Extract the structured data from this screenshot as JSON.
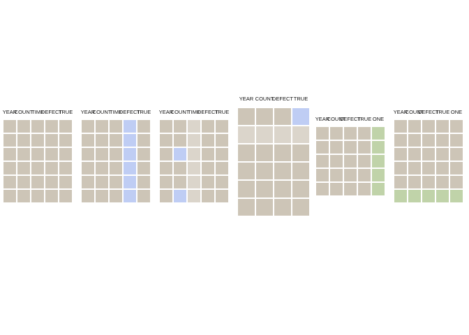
{
  "panels": [
    {
      "headers": [
        "YEAR",
        "COUNT",
        "TIME",
        "DEFECT",
        "TRUE"
      ],
      "rows": 6,
      "cells": [
        [
          "tan",
          "tan",
          "tan",
          "tan",
          "tan"
        ],
        [
          "tan",
          "tan",
          "tan",
          "tan",
          "tan"
        ],
        [
          "tan",
          "tan",
          "tan",
          "tan",
          "tan"
        ],
        [
          "tan",
          "tan",
          "tan",
          "tan",
          "tan"
        ],
        [
          "tan",
          "tan",
          "tan",
          "tan",
          "tan"
        ],
        [
          "tan",
          "tan",
          "tan",
          "tan",
          "tan"
        ]
      ]
    },
    {
      "headers": [
        "YEAR",
        "COUNT",
        "TIME",
        "DEFECT",
        "TRUE"
      ],
      "rows": 6,
      "cells": [
        [
          "tan",
          "tan",
          "tan",
          "blue",
          "tan"
        ],
        [
          "tan",
          "tan",
          "tan",
          "blue",
          "tan"
        ],
        [
          "tan",
          "tan",
          "tan",
          "blue",
          "tan"
        ],
        [
          "tan",
          "tan",
          "tan",
          "blue",
          "tan"
        ],
        [
          "tan",
          "tan",
          "tan",
          "blue",
          "tan"
        ],
        [
          "tan",
          "tan",
          "tan",
          "blue",
          "tan"
        ]
      ]
    },
    {
      "headers": [
        "YEAR",
        "COUNT",
        "TIME",
        "DEFECT",
        "TRUE"
      ],
      "rows": 6,
      "cells": [
        [
          "tan",
          "tan",
          "light",
          "tan",
          "tan"
        ],
        [
          "tan",
          "tan",
          "light",
          "tan",
          "tan"
        ],
        [
          "tan",
          "blue",
          "light",
          "tan",
          "tan"
        ],
        [
          "tan",
          "tan",
          "light",
          "tan",
          "tan"
        ],
        [
          "tan",
          "tan",
          "light",
          "tan",
          "tan"
        ],
        [
          "tan",
          "blue",
          "light",
          "tan",
          "tan"
        ]
      ]
    },
    {
      "headers": [
        "YEAR",
        "COUNT",
        "DEFECT",
        "TRUE"
      ],
      "rows": 6,
      "cells": [
        [
          "tan",
          "tan",
          "tan",
          "blue"
        ],
        [
          "light",
          "light",
          "light",
          "light"
        ],
        [
          "tan",
          "tan",
          "tan",
          "tan"
        ],
        [
          "tan",
          "tan",
          "tan",
          "tan"
        ],
        [
          "tan",
          "tan",
          "tan",
          "tan"
        ],
        [
          "tan",
          "tan",
          "tan",
          "tan"
        ]
      ]
    },
    {
      "headers": [
        "YEAR",
        "COUNT",
        "DEFECT",
        "TRUE",
        "ONE"
      ],
      "rows": 5,
      "cells": [
        [
          "tan",
          "tan",
          "tan",
          "tan",
          "green"
        ],
        [
          "tan",
          "tan",
          "tan",
          "tan",
          "green"
        ],
        [
          "tan",
          "tan",
          "tan",
          "tan",
          "green"
        ],
        [
          "tan",
          "tan",
          "tan",
          "tan",
          "green"
        ],
        [
          "tan",
          "tan",
          "tan",
          "tan",
          "green"
        ]
      ]
    },
    {
      "headers": [
        "YEAR",
        "COUNT",
        "DEFECT",
        "TRUE",
        "ONE"
      ],
      "rows": 6,
      "cells": [
        [
          "tan",
          "tan",
          "tan",
          "tan",
          "tan"
        ],
        [
          "tan",
          "tan",
          "tan",
          "tan",
          "tan"
        ],
        [
          "tan",
          "tan",
          "tan",
          "tan",
          "tan"
        ],
        [
          "tan",
          "tan",
          "tan",
          "tan",
          "tan"
        ],
        [
          "tan",
          "tan",
          "tan",
          "tan",
          "tan"
        ],
        [
          "green",
          "green",
          "green",
          "green",
          "green"
        ]
      ]
    }
  ],
  "colors": {
    "tan": "#cdc5b7",
    "light": "#dbd5cb",
    "blue": "#bfcdf4",
    "green": "#c0d3a9"
  }
}
